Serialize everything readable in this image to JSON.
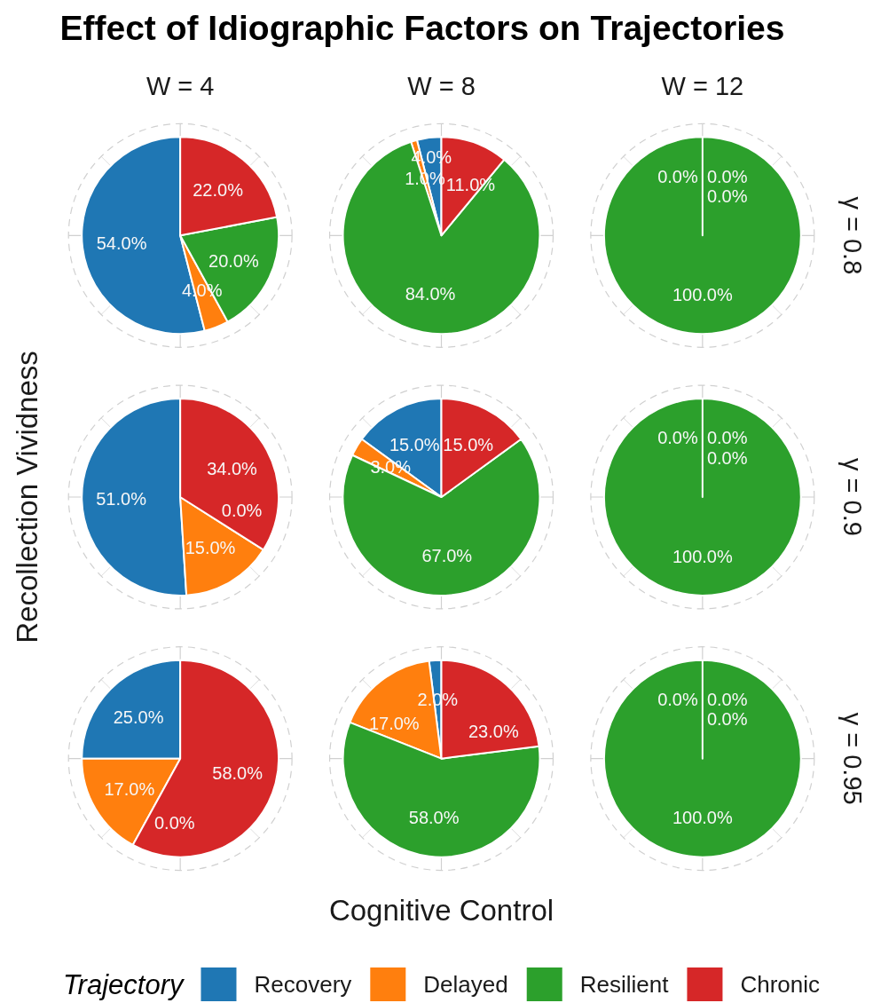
{
  "chart_data": [
    {
      "type": "other",
      "title": "Effect of Idiographic Factors on Trajectories",
      "xlabel": "Cognitive Control",
      "ylabel": "Recollection Vividness"
    },
    {
      "type": "pie",
      "title": "W = 4",
      "categories": [
        "Recovery",
        "Delayed",
        "Resilient",
        "Chronic"
      ],
      "values": [
        54,
        4,
        20,
        22
      ],
      "colors": [
        "#1f77b4",
        "#ff7f0e",
        "#2ca02c",
        "#d62728"
      ],
      "value_labels": [
        "54.0%",
        "4.0%",
        "20.0%",
        "22.0%"
      ],
      "grid": true,
      "legend": "bottom",
      "legend_title": "Trajectory"
    },
    {
      "type": "pie",
      "title": "W = 8",
      "categories": [
        null,
        null,
        null,
        null
      ],
      "values": [
        4,
        1,
        84,
        11
      ],
      "colors": [
        "#1f77b4",
        "#ff7f0e",
        "#2ca02c",
        "#d62728"
      ],
      "value_labels": [
        "4.0%",
        "1.0%",
        "84.0%",
        "11.0%"
      ],
      "grid": true
    },
    {
      "type": "pie",
      "title": "W = 12",
      "y2label": "γ = 0.8",
      "categories": [
        null,
        null,
        null,
        null
      ],
      "values": [
        0,
        0,
        100,
        0
      ],
      "colors": [
        null,
        null,
        "#2ca02c",
        null
      ],
      "value_labels": [
        "0.0%",
        "0.0%",
        "100.0%",
        "0.0%"
      ],
      "grid": true
    },
    {
      "type": "pie",
      "categories": [
        null,
        null,
        null,
        null
      ],
      "values": [
        51,
        15,
        0,
        34
      ],
      "colors": [
        "#1f77b4",
        "#ff7f0e",
        null,
        "#d62728"
      ],
      "value_labels": [
        "51.0%",
        "15.0%",
        "0.0%",
        "34.0%"
      ],
      "grid": true
    },
    {
      "type": "pie",
      "categories": [
        null,
        null,
        null,
        null
      ],
      "values": [
        15,
        3,
        67,
        15
      ],
      "colors": [
        "#1f77b4",
        "#ff7f0e",
        "#2ca02c",
        "#d62728"
      ],
      "value_labels": [
        "15.0%",
        "3.0%",
        "67.0%",
        "15.0%"
      ],
      "grid": true
    },
    {
      "type": "pie",
      "y2label": "γ = 0.9",
      "categories": [
        null,
        null,
        null,
        null
      ],
      "values": [
        0,
        0,
        100,
        0
      ],
      "colors": [
        null,
        null,
        "#2ca02c",
        null
      ],
      "value_labels": [
        "0.0%",
        "0.0%",
        "100.0%",
        "0.0%"
      ],
      "grid": true
    },
    {
      "type": "pie",
      "categories": [
        null,
        null,
        null,
        null
      ],
      "values": [
        25,
        17,
        0,
        58
      ],
      "colors": [
        "#1f77b4",
        "#ff7f0e",
        null,
        "#d62728"
      ],
      "value_labels": [
        "25.0%",
        "17.0%",
        "0.0%",
        "58.0%"
      ],
      "grid": true
    },
    {
      "type": "pie",
      "categories": [
        null,
        null,
        null,
        null
      ],
      "values": [
        2,
        17,
        58,
        23
      ],
      "colors": [
        "#1f77b4",
        "#ff7f0e",
        "#2ca02c",
        "#d62728"
      ],
      "value_labels": [
        "2.0%",
        "17.0%",
        "58.0%",
        "23.0%"
      ],
      "grid": true
    },
    {
      "type": "pie",
      "y2label": "γ = 0.95",
      "categories": [
        null,
        null,
        null,
        null
      ],
      "values": [
        0,
        0,
        100,
        0
      ],
      "colors": [
        null,
        null,
        "#2ca02c",
        null
      ],
      "value_labels": [
        "0.0%",
        "0.0%",
        "100.0%",
        "0.0%"
      ],
      "grid": true
    }
  ]
}
